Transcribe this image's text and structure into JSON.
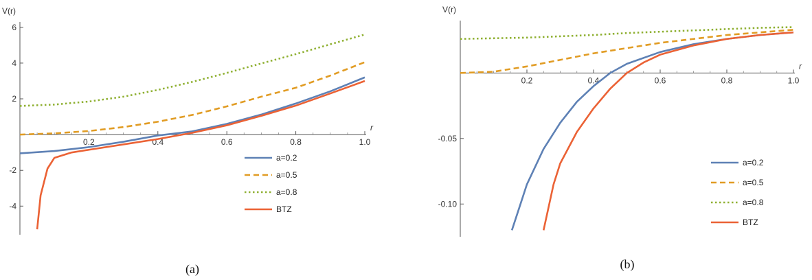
{
  "chart_data": [
    {
      "type": "line",
      "caption": "(a)",
      "xlabel": "r",
      "ylabel": "V(r)",
      "xlim": [
        0,
        1.0
      ],
      "ylim": [
        -5.6,
        6.3
      ],
      "xticks": [
        0.2,
        0.4,
        0.6,
        0.8,
        1.0
      ],
      "xtick_labels": [
        "0.2",
        "0.4",
        "0.6",
        "0.8",
        "1.0"
      ],
      "yticks": [
        -4,
        -2,
        2,
        4,
        6
      ],
      "ytick_labels": [
        "-4",
        "-2",
        "2",
        "4",
        "6"
      ],
      "legend_position": "lower-right",
      "series": [
        {
          "name": "a=0.2",
          "color": "#5E81B5",
          "dash": "solid",
          "x": [
            0.0,
            0.1,
            0.2,
            0.3,
            0.4,
            0.5,
            0.6,
            0.7,
            0.8,
            0.9,
            1.0
          ],
          "y": [
            -1.05,
            -0.92,
            -0.7,
            -0.4,
            -0.05,
            0.18,
            0.6,
            1.12,
            1.74,
            2.42,
            3.2
          ]
        },
        {
          "name": "a=0.5",
          "color": "#E19C24",
          "dash": "dashed",
          "x": [
            0.0,
            0.1,
            0.2,
            0.3,
            0.4,
            0.5,
            0.6,
            0.7,
            0.8,
            0.9,
            1.0
          ],
          "y": [
            0.0,
            0.07,
            0.2,
            0.42,
            0.72,
            1.1,
            1.58,
            2.12,
            2.62,
            3.3,
            4.05
          ]
        },
        {
          "name": "a=0.8",
          "color": "#8FB032",
          "dash": "dotted",
          "x": [
            0.0,
            0.1,
            0.2,
            0.3,
            0.4,
            0.5,
            0.6,
            0.7,
            0.8,
            0.9,
            1.0
          ],
          "y": [
            1.6,
            1.68,
            1.85,
            2.12,
            2.5,
            2.95,
            3.45,
            3.98,
            4.5,
            5.05,
            5.6
          ]
        },
        {
          "name": "BTZ",
          "color": "#EB6235",
          "dash": "solid",
          "x": [
            0.05,
            0.06,
            0.08,
            0.1,
            0.15,
            0.2,
            0.3,
            0.4,
            0.5,
            0.6,
            0.7,
            0.8,
            0.9,
            1.0
          ],
          "y": [
            -5.3,
            -3.4,
            -1.9,
            -1.3,
            -1.0,
            -0.85,
            -0.55,
            -0.25,
            0.1,
            0.52,
            1.05,
            1.62,
            2.3,
            3.0
          ]
        }
      ]
    },
    {
      "type": "line",
      "caption": "(b)",
      "xlabel": "r",
      "ylabel": "V(r)",
      "xlim": [
        0,
        1.0
      ],
      "ylim": [
        -0.125,
        0.04
      ],
      "xticks": [
        0.2,
        0.4,
        0.6,
        0.8,
        1.0
      ],
      "xtick_labels": [
        "0.2",
        "0.4",
        "0.6",
        "0.8",
        "1.0"
      ],
      "yticks": [
        -0.05,
        -0.1
      ],
      "ytick_labels": [
        "-0.05",
        "-0.10"
      ],
      "legend_position": "lower-right",
      "series": [
        {
          "name": "a=0.2",
          "color": "#5E81B5",
          "dash": "solid",
          "x": [
            0.155,
            0.2,
            0.25,
            0.3,
            0.35,
            0.4,
            0.45,
            0.5,
            0.6,
            0.7,
            0.8,
            0.9,
            1.0
          ],
          "y": [
            -0.12,
            -0.085,
            -0.058,
            -0.038,
            -0.022,
            -0.01,
            0.0,
            0.007,
            0.016,
            0.022,
            0.026,
            0.029,
            0.031
          ]
        },
        {
          "name": "a=0.5",
          "color": "#E19C24",
          "dash": "dashed",
          "x": [
            0.0,
            0.1,
            0.2,
            0.3,
            0.4,
            0.5,
            0.6,
            0.7,
            0.8,
            0.9,
            1.0
          ],
          "y": [
            0.0,
            0.001,
            0.005,
            0.01,
            0.015,
            0.019,
            0.023,
            0.026,
            0.029,
            0.031,
            0.033
          ]
        },
        {
          "name": "a=0.8",
          "color": "#8FB032",
          "dash": "dotted",
          "x": [
            0.0,
            0.1,
            0.2,
            0.3,
            0.4,
            0.5,
            0.6,
            0.7,
            0.8,
            0.9,
            1.0
          ],
          "y": [
            0.026,
            0.0265,
            0.027,
            0.028,
            0.029,
            0.0305,
            0.0315,
            0.0325,
            0.0335,
            0.0345,
            0.035
          ]
        },
        {
          "name": "BTZ",
          "color": "#EB6235",
          "dash": "solid",
          "x": [
            0.25,
            0.28,
            0.3,
            0.35,
            0.4,
            0.45,
            0.5,
            0.55,
            0.6,
            0.7,
            0.8,
            0.9,
            1.0
          ],
          "y": [
            -0.12,
            -0.085,
            -0.069,
            -0.045,
            -0.027,
            -0.012,
            0.0,
            0.008,
            0.014,
            0.021,
            0.026,
            0.029,
            0.031
          ]
        }
      ]
    }
  ]
}
